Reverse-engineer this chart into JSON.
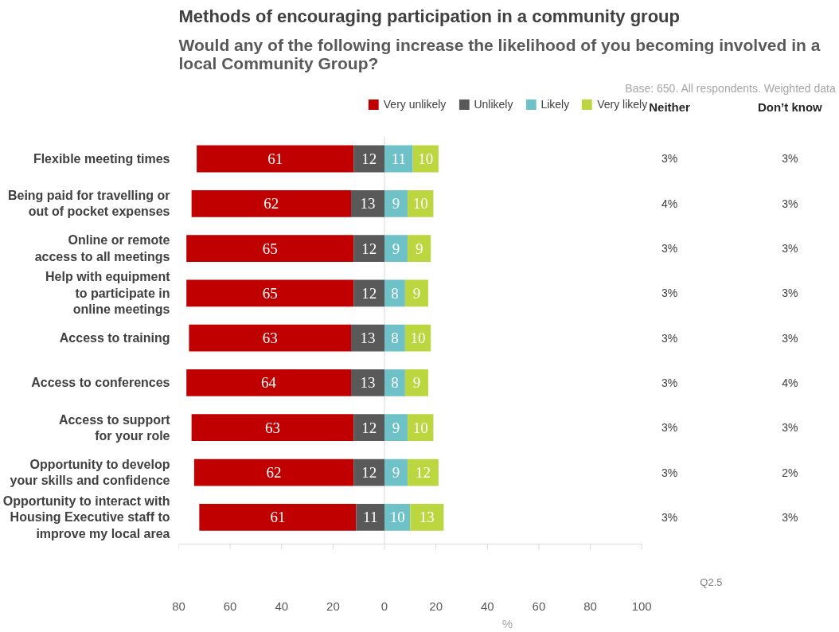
{
  "chart_data": {
    "type": "bar",
    "orientation": "horizontal",
    "title": "Methods of encouraging participation in a community group",
    "subtitle": "Would any of the following increase the likelihood of you becoming involved in a\nlocal Community Group?",
    "xlabel": "%",
    "categories": [
      "Flexible meeting times",
      "Being paid for travelling or\nout of pocket expenses",
      "Online or remote\naccess to all meetings",
      "Help with equipment\nto participate in\nonline meetings",
      "Access to training",
      "Access to conferences",
      "Access to support\nfor your role",
      "Opportunity to develop\nyour skills and confidence",
      "Opportunity to interact with\nHousing Executive staff to\nimprove my local area"
    ],
    "series": [
      {
        "name": "Very unlikely",
        "color": "#c00000",
        "values": [
          61,
          62,
          65,
          65,
          63,
          64,
          63,
          62,
          61
        ],
        "base": [
          -73,
          -75,
          -77,
          -77,
          -76,
          -77,
          -75,
          -74,
          -72
        ]
      },
      {
        "name": "Unlikely",
        "color": "#595959",
        "values": [
          12,
          13,
          12,
          12,
          13,
          13,
          12,
          12,
          11
        ],
        "base": [
          -12,
          -13,
          -12,
          -12,
          -13,
          -13,
          -12,
          -12,
          -11
        ]
      },
      {
        "name": "Likely",
        "color": "#6fc1c8",
        "values": [
          11,
          9,
          9,
          8,
          8,
          8,
          9,
          9,
          10
        ],
        "base": [
          0,
          0,
          0,
          0,
          0,
          0,
          0,
          0,
          0
        ]
      },
      {
        "name": "Very likely",
        "color": "#bcd640",
        "values": [
          10,
          10,
          9,
          9,
          10,
          9,
          10,
          12,
          13
        ],
        "base": [
          11,
          9,
          9,
          8,
          8,
          8,
          9,
          9,
          10
        ]
      }
    ],
    "data_labels": true,
    "xlim": [
      -80,
      100
    ],
    "xticks": [
      {
        "value": -80,
        "label": "80"
      },
      {
        "value": -60,
        "label": "60"
      },
      {
        "value": -40,
        "label": "40"
      },
      {
        "value": -20,
        "label": "20"
      },
      0,
      20,
      40,
      60,
      80,
      100
    ],
    "ref_lines": [
      {
        "axis": "x",
        "value": 0,
        "color": "#d9d9d9"
      }
    ],
    "legend": "top",
    "annotations": [
      "Neither",
      "3%",
      "4%",
      "3%",
      "3%",
      "3%",
      "3%",
      "3%",
      "3%",
      "3%",
      "Don’t know",
      "3%",
      "3%",
      "3%",
      "3%",
      "3%",
      "4%",
      "3%",
      "2%",
      "3%",
      "Base: 650. All respondents. Weighted data",
      "Q2.5"
    ]
  }
}
